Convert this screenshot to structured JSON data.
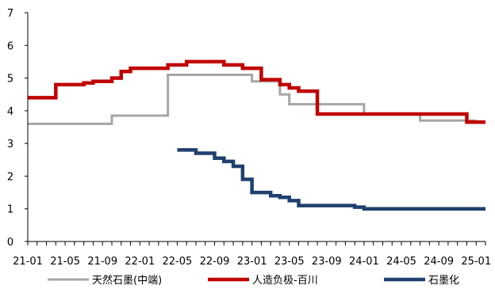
{
  "chart_data": {
    "type": "line",
    "step": true,
    "title": "",
    "xlabel": "",
    "ylabel": "",
    "ylim": [
      0,
      7
    ],
    "yticks": [
      0,
      1,
      2,
      3,
      4,
      5,
      6,
      7
    ],
    "xlim": [
      "2021-01",
      "2025-02"
    ],
    "xtick_labels": [
      "21-01",
      "21-05",
      "21-09",
      "22-01",
      "22-05",
      "22-09",
      "23-01",
      "23-05",
      "23-09",
      "24-01",
      "24-05",
      "24-09",
      "25-01"
    ],
    "grid": false,
    "legend_position": "bottom",
    "series": [
      {
        "name": "天然石墨(中端)",
        "color": "#a6a6a6",
        "points": [
          [
            "2021-01",
            3.6
          ],
          [
            "2021-10",
            3.6
          ],
          [
            "2021-10",
            3.85
          ],
          [
            "2022-04",
            3.85
          ],
          [
            "2022-04",
            5.1
          ],
          [
            "2023-01",
            5.1
          ],
          [
            "2023-01",
            4.9
          ],
          [
            "2023-04",
            4.9
          ],
          [
            "2023-04",
            4.5
          ],
          [
            "2023-05",
            4.5
          ],
          [
            "2023-05",
            4.2
          ],
          [
            "2024-01",
            4.2
          ],
          [
            "2024-01",
            3.9
          ],
          [
            "2024-07",
            3.9
          ],
          [
            "2024-07",
            3.7
          ],
          [
            "2025-01",
            3.7
          ]
        ]
      },
      {
        "name": "人造负极-百川",
        "color": "#c00000",
        "points": [
          [
            "2021-01",
            4.4
          ],
          [
            "2021-04",
            4.4
          ],
          [
            "2021-04",
            4.8
          ],
          [
            "2021-07",
            4.8
          ],
          [
            "2021-07",
            4.85
          ],
          [
            "2021-08",
            4.85
          ],
          [
            "2021-08",
            4.9
          ],
          [
            "2021-10",
            4.9
          ],
          [
            "2021-10",
            5.0
          ],
          [
            "2021-11",
            5.0
          ],
          [
            "2021-11",
            5.2
          ],
          [
            "2021-12",
            5.2
          ],
          [
            "2021-12",
            5.3
          ],
          [
            "2022-04",
            5.3
          ],
          [
            "2022-04",
            5.4
          ],
          [
            "2022-06",
            5.4
          ],
          [
            "2022-06",
            5.5
          ],
          [
            "2022-10",
            5.5
          ],
          [
            "2022-10",
            5.4
          ],
          [
            "2022-12",
            5.4
          ],
          [
            "2022-12",
            5.3
          ],
          [
            "2023-02",
            5.3
          ],
          [
            "2023-02",
            4.95
          ],
          [
            "2023-04",
            4.95
          ],
          [
            "2023-04",
            4.8
          ],
          [
            "2023-05",
            4.8
          ],
          [
            "2023-05",
            4.7
          ],
          [
            "2023-06",
            4.7
          ],
          [
            "2023-06",
            4.6
          ],
          [
            "2023-08",
            4.6
          ],
          [
            "2023-08",
            3.9
          ],
          [
            "2024-12",
            3.9
          ],
          [
            "2024-12",
            3.65
          ],
          [
            "2025-02",
            3.65
          ]
        ]
      },
      {
        "name": "石墨化",
        "color": "#1f3f6e",
        "points": [
          [
            "2022-05",
            2.8
          ],
          [
            "2022-07",
            2.8
          ],
          [
            "2022-07",
            2.7
          ],
          [
            "2022-09",
            2.7
          ],
          [
            "2022-09",
            2.55
          ],
          [
            "2022-10",
            2.55
          ],
          [
            "2022-10",
            2.45
          ],
          [
            "2022-11",
            2.45
          ],
          [
            "2022-11",
            2.3
          ],
          [
            "2022-12",
            2.3
          ],
          [
            "2022-12",
            1.9
          ],
          [
            "2023-01",
            1.9
          ],
          [
            "2023-01",
            1.5
          ],
          [
            "2023-03",
            1.5
          ],
          [
            "2023-03",
            1.4
          ],
          [
            "2023-04",
            1.4
          ],
          [
            "2023-04",
            1.35
          ],
          [
            "2023-05",
            1.35
          ],
          [
            "2023-05",
            1.25
          ],
          [
            "2023-06",
            1.25
          ],
          [
            "2023-06",
            1.1
          ],
          [
            "2023-12",
            1.1
          ],
          [
            "2023-12",
            1.05
          ],
          [
            "2024-01",
            1.05
          ],
          [
            "2024-01",
            1.0
          ],
          [
            "2025-02",
            1.0
          ]
        ]
      }
    ]
  }
}
